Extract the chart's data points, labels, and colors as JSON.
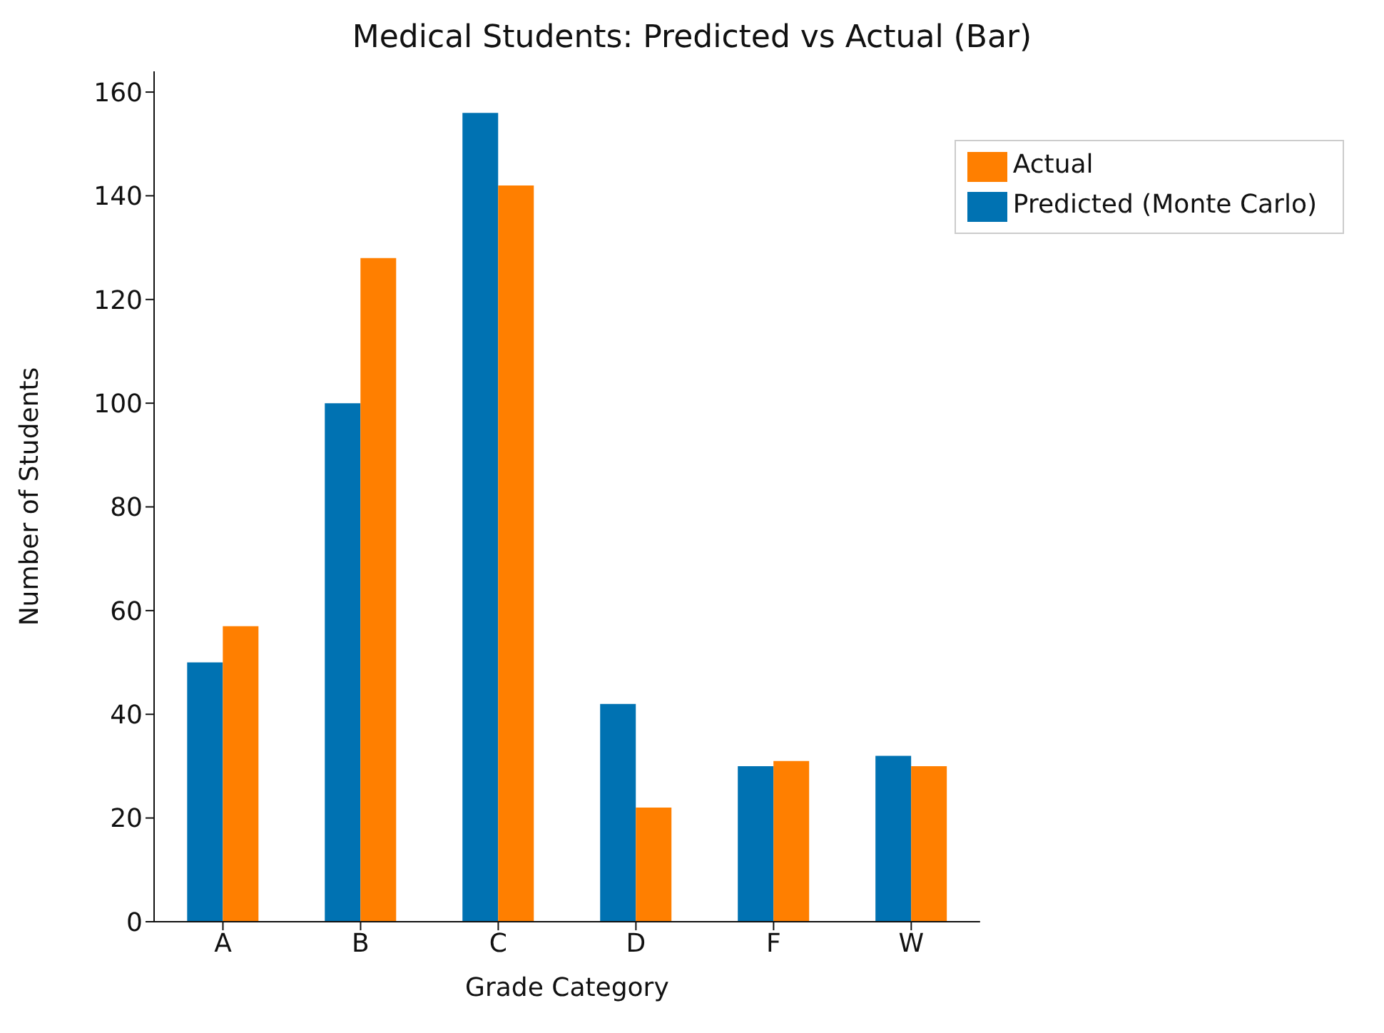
{
  "chart_data": {
    "type": "bar",
    "title": "Medical Students: Predicted vs Actual (Bar)",
    "xlabel": "Grade Category",
    "ylabel": "Number of Students",
    "categories": [
      "A",
      "B",
      "C",
      "D",
      "F",
      "W"
    ],
    "series": [
      {
        "name": "Predicted (Monte Carlo)",
        "color": "#0072b2",
        "values": [
          50,
          100,
          156,
          42,
          30,
          32
        ]
      },
      {
        "name": "Actual",
        "color": "#ff7f00",
        "values": [
          57,
          128,
          142,
          22,
          31,
          30
        ]
      }
    ],
    "ylim": [
      0,
      164
    ],
    "yticks": [
      0,
      20,
      40,
      60,
      80,
      100,
      120,
      140,
      160
    ],
    "grid": false,
    "legend": "top right"
  }
}
